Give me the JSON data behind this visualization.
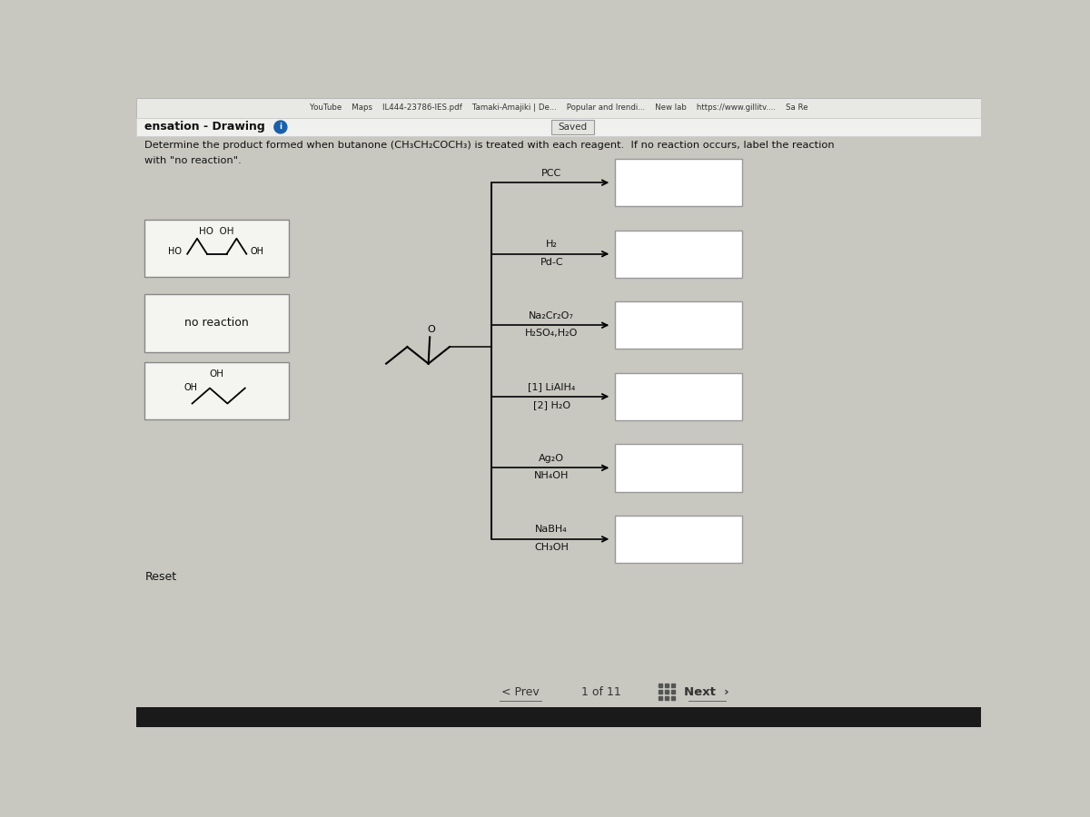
{
  "bg_color": "#c8c8c0",
  "toolbar_bg": "#dcdcdc",
  "browser_bar_color": "#e8e8e4",
  "page_bar_color": "#f0f0ee",
  "browser_text": "YouTube    Maps    IL444-23786-IES.pdf    Tamaki-Amajiki | De...    Popular and Irendi...    New lab    https://www.gillitv....    Sa Re",
  "page_title": "ensation - Drawing",
  "info_circle_color": "#1a5faa",
  "saved_label": "Saved",
  "saved_bg": "#e4e4e0",
  "question_line1": "Determine the product formed when butanone (CH₃CH₂COCH₃) is treated with each reagent.  If no reaction occurs, label the reaction",
  "question_line2": "with \"no reaction\".",
  "reagent_line1": [
    "PCC",
    "H₂",
    "Na₂Cr₂O₇",
    "[1] LiAlH₄",
    "Ag₂O",
    "NaBH₄"
  ],
  "reagent_line2": [
    "",
    "Pd-C",
    "H₂SO₄,H₂O",
    "[2] H₂O",
    "NH₄OH",
    "CH₃OH"
  ],
  "left_box_labels": [
    "HO  OH",
    "no reaction",
    "OH"
  ],
  "left_box_text_only": [
    false,
    true,
    false
  ],
  "reset_text": "Reset",
  "nav_prev": "Prev",
  "nav_page": "1 of 11",
  "nav_next": "Next",
  "box_bg": "#ffffff",
  "box_border": "#999999",
  "left_box_bg": "#f4f4f0",
  "left_box_border": "#888888",
  "line_color": "#111111",
  "text_color": "#111111",
  "nav_color": "#333333",
  "bottom_bar_color": "#1a1a1a"
}
